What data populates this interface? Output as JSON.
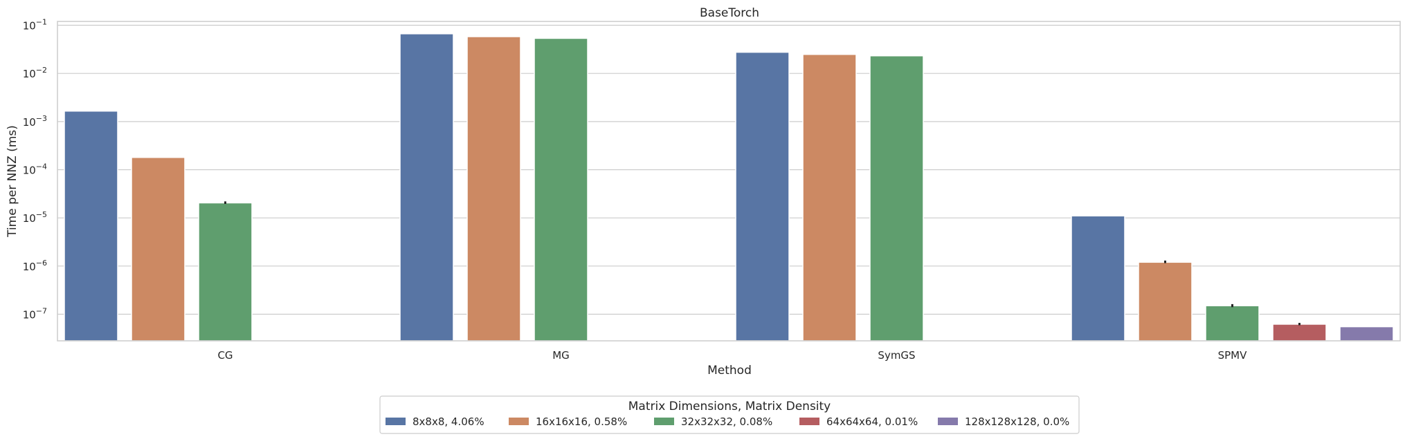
{
  "chart_data": {
    "type": "bar",
    "title": "BaseTorch",
    "xlabel": "Method",
    "ylabel": "Time per NNZ (ms)",
    "yscale": "log",
    "ylim": [
      2.8e-08,
      0.12
    ],
    "grid": "y",
    "categories": [
      "CG",
      "MG",
      "SymGS",
      "SPMV"
    ],
    "yticks": [
      {
        "value": 1e-07,
        "base": "10",
        "exp": "−7"
      },
      {
        "value": 1e-06,
        "base": "10",
        "exp": "−6"
      },
      {
        "value": 1e-05,
        "base": "10",
        "exp": "−5"
      },
      {
        "value": 0.0001,
        "base": "10",
        "exp": "−4"
      },
      {
        "value": 0.001,
        "base": "10",
        "exp": "−3"
      },
      {
        "value": 0.01,
        "base": "10",
        "exp": "−2"
      },
      {
        "value": 0.1,
        "base": "10",
        "exp": "−1"
      }
    ],
    "legend": {
      "title": "Matrix Dimensions, Matrix Density",
      "placement": "bottom-center"
    },
    "series": [
      {
        "name": "8x8x8, 4.06%",
        "color": "#5875a4",
        "values": [
          0.00165,
          0.0665,
          0.0275,
          1.1e-05
        ],
        "errors": [
          null,
          null,
          null,
          null
        ]
      },
      {
        "name": "16x16x16, 0.58%",
        "color": "#cc8963",
        "values": [
          0.00018,
          0.058,
          0.0248,
          1.2e-06
        ],
        "errors": [
          null,
          null,
          null,
          [
            1.15e-06,
            1.3e-06
          ]
        ]
      },
      {
        "name": "32x32x32, 0.08%",
        "color": "#5f9e6e",
        "values": [
          2.05e-05,
          0.0535,
          0.0232,
          1.5e-07
        ],
        "errors": [
          [
            1.95e-05,
            2.2e-05
          ],
          null,
          null,
          [
            1.4e-07,
            1.62e-07
          ]
        ]
      },
      {
        "name": "64x64x64, 0.01%",
        "color": "#b55d60",
        "values": [
          null,
          null,
          null,
          6.2e-08
        ],
        "errors": [
          null,
          null,
          null,
          [
            5.9e-08,
            6.6e-08
          ]
        ]
      },
      {
        "name": "128x128x128, 0.0%",
        "color": "#857aab",
        "values": [
          null,
          null,
          null,
          5.5e-08
        ],
        "errors": [
          null,
          null,
          null,
          null
        ]
      }
    ]
  }
}
